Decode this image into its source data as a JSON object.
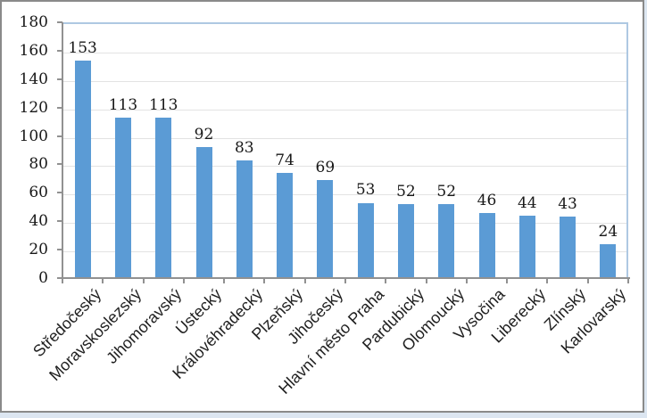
{
  "chart_data": {
    "type": "bar",
    "title": "",
    "xlabel": "",
    "ylabel": "",
    "categories": [
      "Středočeský",
      "Moravskoslezský",
      "Jihomoravský",
      "Ústecký",
      "Královéhradecký",
      "Plzeňský",
      "Jihočeský",
      "Hlavní město Praha",
      "Pardubický",
      "Olomoucký",
      "Vysočina",
      "Liberecký",
      "Zlínský",
      "Karlovarský"
    ],
    "values": [
      153,
      113,
      113,
      92,
      83,
      74,
      69,
      53,
      52,
      52,
      46,
      44,
      43,
      24
    ],
    "data_labels": [
      153,
      113,
      113,
      92,
      83,
      74,
      69,
      53,
      52,
      52,
      46,
      44,
      43,
      24
    ],
    "yticks": [
      0,
      20,
      40,
      60,
      80,
      100,
      120,
      140,
      160,
      180
    ],
    "ylim": [
      0,
      180
    ],
    "grid": true,
    "legend": false,
    "category_label_rotation_deg": -45,
    "bar_color": "#5b9bd5"
  },
  "colors": {
    "bar": "#5b9bd5",
    "plot_border": "#aec8e2",
    "gridline": "#e3e3e3",
    "axis_line": "#919191",
    "frame_border": "#8a8a8a",
    "chart_background": "#ffffff",
    "worksheet_background": "#dce6f1",
    "text": "#181818"
  }
}
